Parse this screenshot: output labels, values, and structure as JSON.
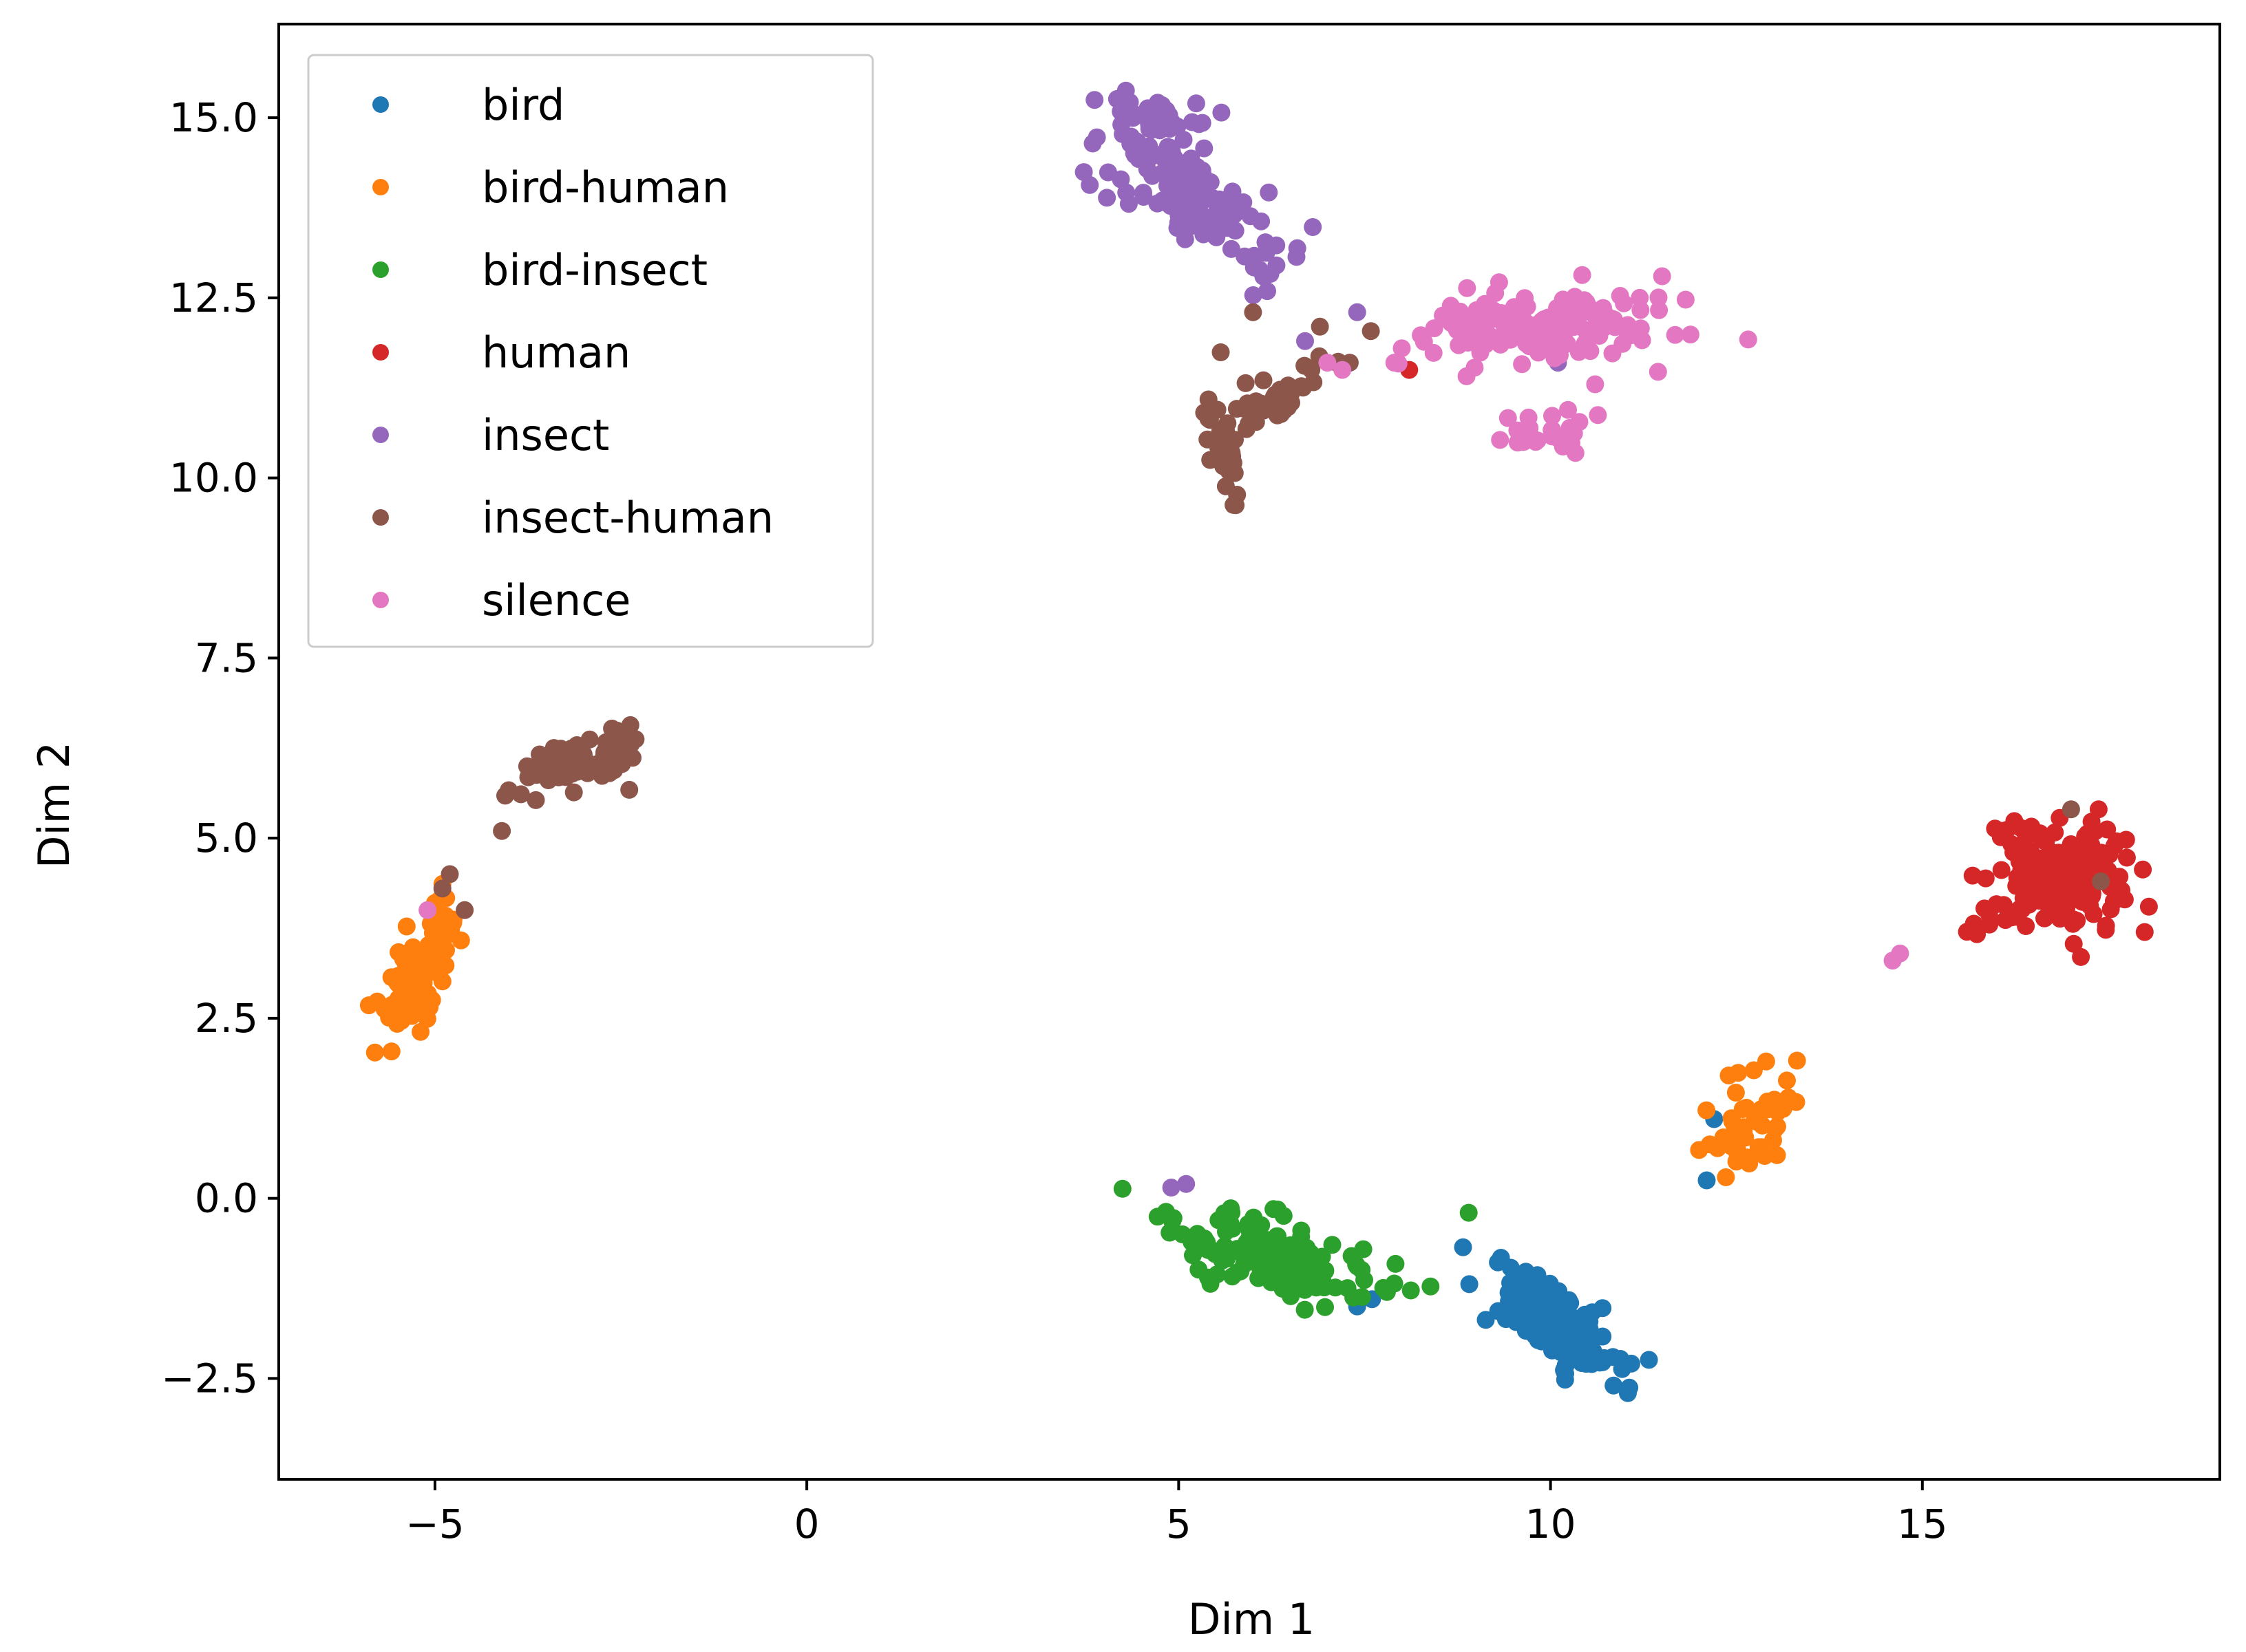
{
  "chart_data": {
    "type": "scatter",
    "title": "",
    "xlabel": "Dim 1",
    "ylabel": "Dim 2",
    "xlim": [
      -7.1,
      19.0
    ],
    "ylim": [
      -3.9,
      16.3
    ],
    "xticks": [
      -5,
      0,
      5,
      10,
      15
    ],
    "xtick_labels": [
      "−5",
      "0",
      "5",
      "10",
      "15"
    ],
    "yticks": [
      -2.5,
      0.0,
      2.5,
      5.0,
      7.5,
      10.0,
      12.5,
      15.0
    ],
    "ytick_labels": [
      "−2.5",
      "0.0",
      "2.5",
      "5.0",
      "7.5",
      "10.0",
      "12.5",
      "15.0"
    ],
    "grid": false,
    "legend_position": "top-left",
    "series": [
      {
        "name": "bird",
        "color": "#1f77b4",
        "clusters": [
          {
            "cx": 10.0,
            "cy": -1.7,
            "sx": 0.45,
            "sy": 0.4,
            "n": 150,
            "rho": -0.75
          }
        ],
        "points": [
          [
            12.2,
            1.1
          ],
          [
            12.1,
            0.25
          ],
          [
            7.6,
            -1.4
          ],
          [
            7.4,
            -1.5
          ]
        ]
      },
      {
        "name": "bird-human",
        "color": "#ff7f0e",
        "clusters": [
          {
            "cx": -5.2,
            "cy": 3.2,
            "sx": 0.28,
            "sy": 0.55,
            "n": 90,
            "rho": 0.75
          },
          {
            "cx": 12.7,
            "cy": 1.0,
            "sx": 0.28,
            "sy": 0.38,
            "n": 50,
            "rho": 0.5
          }
        ],
        "points": [
          [
            -5.0,
            4.1
          ],
          [
            12.9,
            1.9
          ],
          [
            13.2,
            1.4
          ]
        ]
      },
      {
        "name": "bird-insect",
        "color": "#2ca02c",
        "clusters": [
          {
            "cx": 6.2,
            "cy": -0.8,
            "sx": 0.75,
            "sy": 0.32,
            "n": 150,
            "rho": -0.6
          }
        ],
        "points": [
          [
            8.9,
            -0.2
          ],
          [
            7.8,
            -1.3
          ]
        ]
      },
      {
        "name": "human",
        "color": "#d62728",
        "clusters": [
          {
            "cx": 16.8,
            "cy": 4.5,
            "sx": 0.5,
            "sy": 0.4,
            "n": 170,
            "rho": 0.0
          }
        ],
        "points": [
          [
            15.6,
            3.7
          ],
          [
            15.9,
            3.8
          ],
          [
            16.2,
            3.9
          ],
          [
            8.1,
            11.5
          ]
        ]
      },
      {
        "name": "insect",
        "color": "#9467bd",
        "clusters": [
          {
            "cx": 5.2,
            "cy": 13.9,
            "sx": 0.65,
            "sy": 0.55,
            "n": 150,
            "rho": -0.8
          },
          {
            "cx": 4.7,
            "cy": 15.0,
            "sx": 0.3,
            "sy": 0.15,
            "n": 20,
            "rho": 0.0
          }
        ],
        "points": [
          [
            7.4,
            12.3
          ],
          [
            6.7,
            11.9
          ],
          [
            4.9,
            0.15
          ],
          [
            5.1,
            0.2
          ],
          [
            10.1,
            11.6
          ]
        ]
      },
      {
        "name": "insect-human",
        "color": "#8c564b",
        "clusters": [
          {
            "cx": -3.2,
            "cy": 6.0,
            "sx": 0.35,
            "sy": 0.22,
            "n": 70,
            "rho": 0.3
          },
          {
            "cx": -2.6,
            "cy": 6.2,
            "sx": 0.15,
            "sy": 0.18,
            "n": 15,
            "rho": 0.0
          },
          {
            "cx": 5.6,
            "cy": 10.5,
            "sx": 0.15,
            "sy": 0.4,
            "n": 35,
            "rho": 0.0
          },
          {
            "cx": 6.3,
            "cy": 11.1,
            "sx": 0.4,
            "sy": 0.35,
            "n": 40,
            "rho": 0.85
          }
        ],
        "points": [
          [
            -4.1,
            5.1
          ],
          [
            -4.8,
            4.5
          ],
          [
            -4.9,
            4.3
          ],
          [
            -4.6,
            4.0
          ],
          [
            6.0,
            12.3
          ],
          [
            6.9,
            12.1
          ],
          [
            7.3,
            11.6
          ],
          [
            17.4,
            4.4
          ],
          [
            17.0,
            5.4
          ]
        ]
      },
      {
        "name": "silence",
        "color": "#e377c2",
        "clusters": [
          {
            "cx": 10.0,
            "cy": 12.1,
            "sx": 0.85,
            "sy": 0.25,
            "n": 140,
            "rho": 0.2
          },
          {
            "cx": 9.9,
            "cy": 10.6,
            "sx": 0.35,
            "sy": 0.15,
            "n": 30,
            "rho": 0.3
          }
        ],
        "points": [
          [
            11.5,
            12.8
          ],
          [
            11.2,
            12.5
          ],
          [
            8.0,
            11.8
          ],
          [
            7.9,
            11.6
          ],
          [
            10.6,
            11.3
          ],
          [
            14.7,
            3.4
          ],
          [
            14.6,
            3.3
          ],
          [
            -5.1,
            4.0
          ],
          [
            7.0,
            11.6
          ],
          [
            7.2,
            11.5
          ]
        ]
      }
    ]
  }
}
